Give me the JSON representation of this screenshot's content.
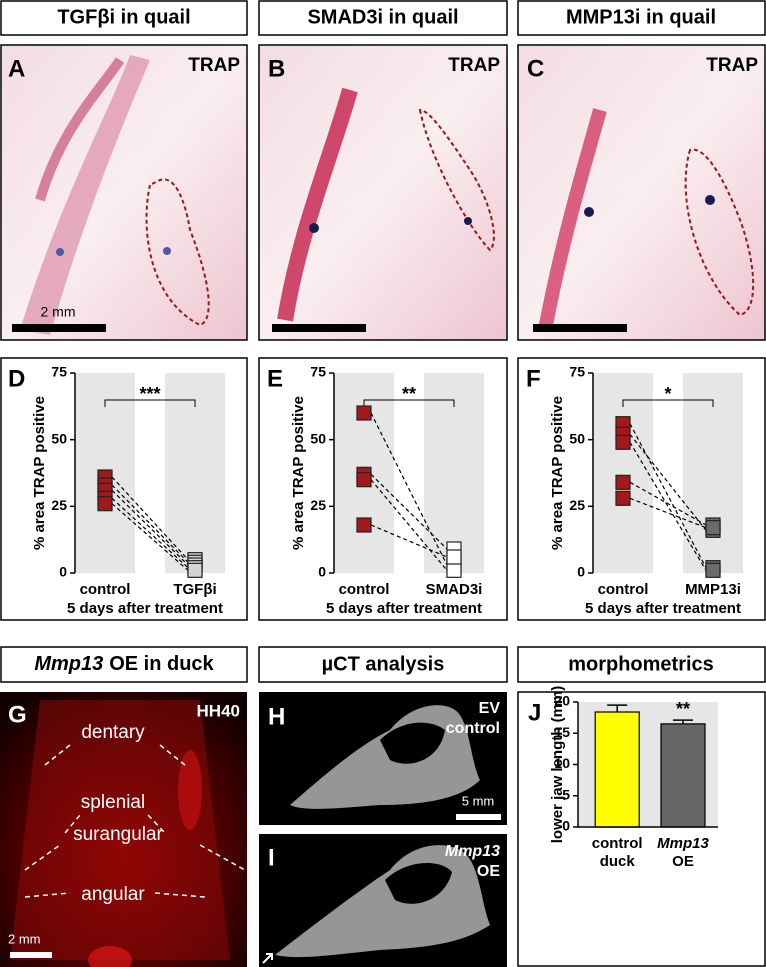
{
  "headers": [
    "TGFβi in quail",
    "SMAD3i in quail",
    "MMP13i in quail",
    {
      "italic": "Mmp13",
      "rest": "OE in duck"
    },
    "µCT analysis",
    "morphometrics"
  ],
  "image_panels": [
    {
      "letter": "A",
      "stain": "TRAP",
      "scale": "2 mm"
    },
    {
      "letter": "B",
      "stain": "TRAP"
    },
    {
      "letter": "C",
      "stain": "TRAP"
    },
    {
      "letter": "G",
      "stage": "HH40",
      "labels": [
        "dentary",
        "splenial",
        "surangular",
        "angular"
      ],
      "scale": "2 mm"
    },
    {
      "letter": "H",
      "lines": [
        "EV",
        "control"
      ],
      "scale": "5 mm"
    },
    {
      "letter": "I",
      "lines": [
        "Mmp13",
        "OE"
      ]
    }
  ],
  "chart_data": [
    {
      "type": "paired",
      "panel_label": "D",
      "categories": [
        "control",
        "TGFβi"
      ],
      "marker_colors": [
        "#a3191b",
        "#d4d4d4"
      ],
      "series": [
        {
          "values": [
            36,
            5
          ]
        },
        {
          "values": [
            33,
            4
          ]
        },
        {
          "values": [
            31,
            3
          ]
        },
        {
          "values": [
            28,
            2
          ]
        },
        {
          "values": [
            26,
            1
          ]
        }
      ],
      "ylim": [
        0,
        75
      ],
      "yticks": [
        0,
        25,
        50,
        75
      ],
      "ylabel": "% area TRAP positive",
      "xlabel": "5 days after treatment",
      "significance": "***"
    },
    {
      "type": "paired",
      "panel_label": "E",
      "categories": [
        "control",
        "SMAD3i"
      ],
      "marker_colors": [
        "#a3191b",
        "#ffffff"
      ],
      "series": [
        {
          "values": [
            60,
            3
          ]
        },
        {
          "values": [
            37,
            9
          ]
        },
        {
          "values": [
            35,
            1
          ]
        },
        {
          "values": [
            18,
            6
          ]
        }
      ],
      "ylim": [
        0,
        75
      ],
      "yticks": [
        0,
        25,
        50,
        75
      ],
      "ylabel": "% area TRAP positive",
      "xlabel": "5 days after treatment",
      "significance": "**"
    },
    {
      "type": "paired",
      "panel_label": "F",
      "categories": [
        "control",
        "MMP13i"
      ],
      "marker_colors": [
        "#a3191b",
        "#6b6b6b"
      ],
      "series": [
        {
          "values": [
            56,
            2
          ]
        },
        {
          "values": [
            52,
            16
          ]
        },
        {
          "values": [
            49,
            1
          ]
        },
        {
          "values": [
            34,
            18
          ]
        },
        {
          "values": [
            28,
            17
          ]
        }
      ],
      "ylim": [
        0,
        75
      ],
      "yticks": [
        0,
        25,
        50,
        75
      ],
      "ylabel": "% area TRAP positive",
      "xlabel": "5 days after treatment",
      "significance": "*"
    },
    {
      "type": "bar",
      "panel_label": "J",
      "categories": [
        [
          "control",
          "duck"
        ],
        [
          "Mmp13",
          "OE"
        ]
      ],
      "values": [
        18.4,
        16.5
      ],
      "errors": [
        1.1,
        0.6
      ],
      "colors": [
        "#ffff00",
        "#666666"
      ],
      "ylim": [
        0,
        20
      ],
      "yticks": [
        0,
        5,
        10,
        15,
        20
      ],
      "ylabel": "lower jaw length (mm)",
      "significance": "**"
    }
  ]
}
